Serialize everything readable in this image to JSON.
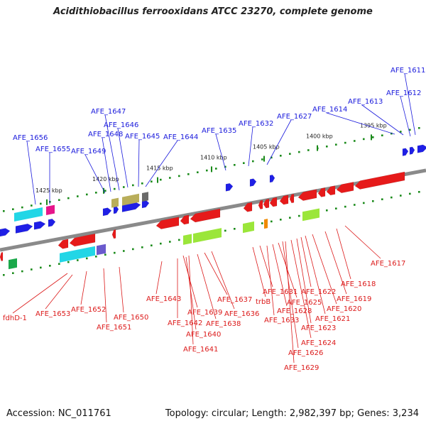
{
  "title": "Acidithiobacillus ferrooxidans ATCC 23270, complete genome",
  "footer": {
    "accession": "Accession: NC_011761",
    "topology": "Topology: circular; Length: 2,982,397 bp; Genes: 3,234"
  },
  "colors": {
    "backbone": "#8a8a8a",
    "forward_label": "#1a1adc",
    "reverse_label": "#dc1a1a",
    "forward_gene": "#1f1fe6",
    "reverse_gene": "#e61a1a",
    "cog_cyan": "#22d6e6",
    "cog_pink": "#e6158a",
    "cog_olive": "#b9ae5a",
    "cog_gray": "#6a6a6a",
    "cog_lime": "#9be63a",
    "cog_orange": "#f08a00",
    "cog_purple": "#6a5acd",
    "cog_green": "#1aa84a",
    "tick_mark": "#1a8a1a"
  },
  "ticks": [
    {
      "label": "1425 kbp"
    },
    {
      "label": "1420 kbp"
    },
    {
      "label": "1415 kbp"
    },
    {
      "label": "1410 kbp"
    },
    {
      "label": "1405 kbp"
    },
    {
      "label": "1400 kbp"
    },
    {
      "label": "1395 kbp"
    }
  ],
  "forward_labels": [
    {
      "text": "AFE_1611"
    },
    {
      "text": "AFE_1612"
    },
    {
      "text": "AFE_1613"
    },
    {
      "text": "AFE_1614"
    },
    {
      "text": "AFE_1627"
    },
    {
      "text": "AFE_1632"
    },
    {
      "text": "AFE_1635"
    },
    {
      "text": "AFE_1644"
    },
    {
      "text": "AFE_1645"
    },
    {
      "text": "AFE_1646"
    },
    {
      "text": "AFE_1647"
    },
    {
      "text": "AFE_1648"
    },
    {
      "text": "AFE_1649"
    },
    {
      "text": "AFE_1655"
    },
    {
      "text": "AFE_1656"
    }
  ],
  "reverse_labels": [
    {
      "text": "fdhD-1"
    },
    {
      "text": "AFE_1653"
    },
    {
      "text": "AFE_1652"
    },
    {
      "text": "AFE_1651"
    },
    {
      "text": "AFE_1650"
    },
    {
      "text": "AFE_1643"
    },
    {
      "text": "AFE_1642"
    },
    {
      "text": "AFE_1639"
    },
    {
      "text": "AFE_1640"
    },
    {
      "text": "AFE_1641"
    },
    {
      "text": "AFE_1638"
    },
    {
      "text": "AFE_1637"
    },
    {
      "text": "AFE_1636"
    },
    {
      "text": "trbB"
    },
    {
      "text": "AFE_1631"
    },
    {
      "text": "AFE_1633"
    },
    {
      "text": "AFE_1628"
    },
    {
      "text": "AFE_1625"
    },
    {
      "text": "AFE_1626"
    },
    {
      "text": "AFE_1629"
    },
    {
      "text": "AFE_1624"
    },
    {
      "text": "AFE_1623"
    },
    {
      "text": "AFE_1622"
    },
    {
      "text": "AFE_1621"
    },
    {
      "text": "AFE_1620"
    },
    {
      "text": "AFE_1619"
    },
    {
      "text": "AFE_1618"
    },
    {
      "text": "AFE_1617"
    }
  ]
}
